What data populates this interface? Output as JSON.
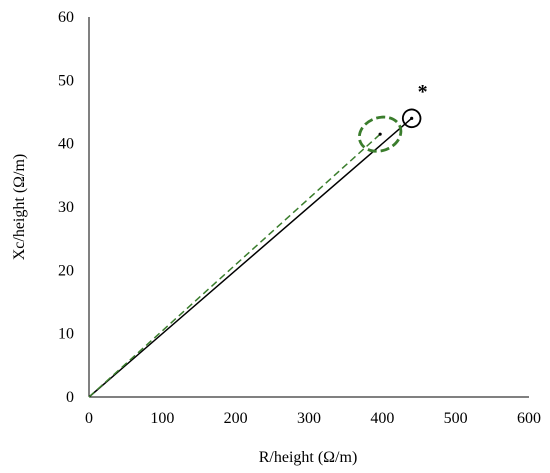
{
  "chart_data": {
    "type": "scatter",
    "title": "",
    "xlabel": "R/height (Ω/m)",
    "ylabel": "Xc/height (Ω/m)",
    "xlim": [
      0,
      600
    ],
    "ylim": [
      0,
      60
    ],
    "x_ticks": [
      "0",
      "100",
      "200",
      "300",
      "400",
      "500",
      "600"
    ],
    "y_ticks": [
      "0",
      "10",
      "20",
      "30",
      "40",
      "50",
      "60"
    ],
    "grid": false,
    "legend": "none",
    "series": [
      {
        "style": "solid",
        "color": "#000000",
        "line": {
          "x": [
            0,
            440
          ],
          "y": [
            0,
            44
          ]
        },
        "center": {
          "x": 440,
          "y": 44
        },
        "ellipse": {
          "rx": 12,
          "ry": 1.4,
          "angle_deg": 25
        }
      },
      {
        "style": "dashed",
        "color": "#3a7d2c",
        "line": {
          "x": [
            0,
            397
          ],
          "y": [
            0,
            41.5
          ]
        },
        "center": {
          "x": 397,
          "y": 41.5
        },
        "ellipse": {
          "rx": 29,
          "ry": 2.6,
          "angle_deg": 20
        }
      }
    ],
    "annotations": [
      {
        "text": "*",
        "x": 455,
        "y": 48.5
      }
    ]
  }
}
